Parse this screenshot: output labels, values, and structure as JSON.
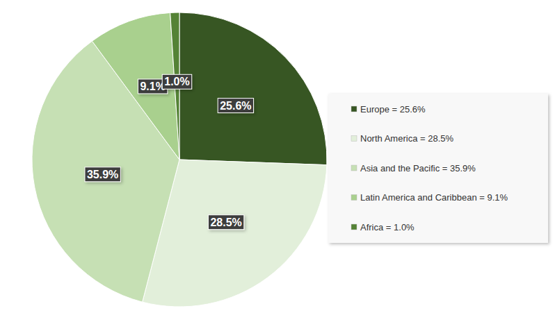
{
  "chart_data": {
    "type": "pie",
    "categories": [
      "Europe = 25.6%",
      "North America = 28.5%",
      "Asia and the Pacific = 35.9%",
      "Latin America and Caribbean = 9.1%",
      "Africa = 1.0%"
    ],
    "values": [
      25.6,
      28.5,
      35.9,
      9.1,
      1.0
    ],
    "value_labels": [
      "25.6%",
      "28.5%",
      "35.9%",
      "9.1%",
      "1.0%"
    ],
    "colors": [
      "#375623",
      "#e2efda",
      "#c6e0b4",
      "#a9d08e",
      "#548235"
    ],
    "data_labels": true,
    "legend": "right"
  }
}
